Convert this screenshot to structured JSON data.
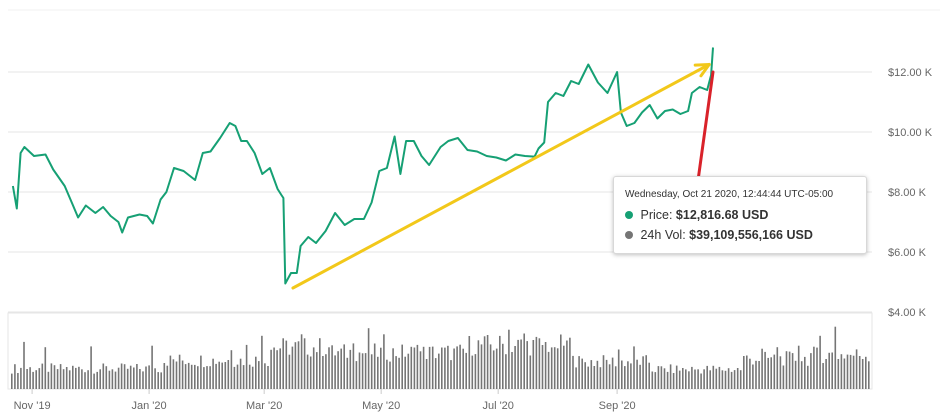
{
  "chart_data": {
    "type": "line",
    "price_axis": {
      "ticks": [
        {
          "value": 4000,
          "label": "$4.00 K"
        },
        {
          "value": 6000,
          "label": "$6.00 K"
        },
        {
          "value": 8000,
          "label": "$8.00 K"
        },
        {
          "value": 10000,
          "label": "$10.00 K"
        },
        {
          "value": 12000,
          "label": "$12.00 K"
        }
      ]
    },
    "x_axis": {
      "ticks": [
        {
          "date": "2019-11-01",
          "label": "Nov '19"
        },
        {
          "date": "2020-01-01",
          "label": "Jan '20"
        },
        {
          "date": "2020-03-01",
          "label": "Mar '20"
        },
        {
          "date": "2020-05-01",
          "label": "May '20"
        },
        {
          "date": "2020-07-01",
          "label": "Jul '20"
        },
        {
          "date": "2020-09-01",
          "label": "Sep '20"
        }
      ]
    },
    "price_series": {
      "color": "#16a074",
      "points": [
        [
          "2019-10-22",
          8200
        ],
        [
          "2019-10-24",
          7450
        ],
        [
          "2019-10-26",
          9300
        ],
        [
          "2019-10-28",
          9500
        ],
        [
          "2019-11-02",
          9200
        ],
        [
          "2019-11-08",
          9250
        ],
        [
          "2019-11-12",
          8750
        ],
        [
          "2019-11-18",
          8200
        ],
        [
          "2019-11-22",
          7600
        ],
        [
          "2019-11-25",
          7150
        ],
        [
          "2019-11-29",
          7550
        ],
        [
          "2019-12-04",
          7300
        ],
        [
          "2019-12-08",
          7500
        ],
        [
          "2019-12-12",
          7200
        ],
        [
          "2019-12-16",
          7000
        ],
        [
          "2019-12-18",
          6650
        ],
        [
          "2019-12-21",
          7150
        ],
        [
          "2019-12-27",
          7250
        ],
        [
          "2019-12-31",
          7200
        ],
        [
          "2020-01-03",
          6950
        ],
        [
          "2020-01-07",
          7750
        ],
        [
          "2020-01-10",
          8000
        ],
        [
          "2020-01-14",
          8800
        ],
        [
          "2020-01-19",
          8700
        ],
        [
          "2020-01-25",
          8400
        ],
        [
          "2020-01-29",
          9300
        ],
        [
          "2020-02-02",
          9350
        ],
        [
          "2020-02-07",
          9800
        ],
        [
          "2020-02-12",
          10300
        ],
        [
          "2020-02-15",
          10200
        ],
        [
          "2020-02-18",
          9700
        ],
        [
          "2020-02-21",
          9700
        ],
        [
          "2020-02-25",
          9300
        ],
        [
          "2020-02-29",
          8600
        ],
        [
          "2020-03-04",
          8800
        ],
        [
          "2020-03-08",
          8100
        ],
        [
          "2020-03-10",
          7900
        ],
        [
          "2020-03-11",
          7800
        ],
        [
          "2020-03-12",
          4950
        ],
        [
          "2020-03-15",
          5300
        ],
        [
          "2020-03-18",
          5300
        ],
        [
          "2020-03-20",
          6200
        ],
        [
          "2020-03-24",
          6500
        ],
        [
          "2020-03-28",
          6300
        ],
        [
          "2020-04-02",
          6700
        ],
        [
          "2020-04-07",
          7300
        ],
        [
          "2020-04-12",
          6900
        ],
        [
          "2020-04-17",
          7100
        ],
        [
          "2020-04-22",
          7100
        ],
        [
          "2020-04-26",
          7650
        ],
        [
          "2020-04-30",
          8700
        ],
        [
          "2020-05-04",
          8800
        ],
        [
          "2020-05-08",
          9850
        ],
        [
          "2020-05-11",
          8600
        ],
        [
          "2020-05-14",
          9700
        ],
        [
          "2020-05-18",
          9700
        ],
        [
          "2020-05-22",
          9200
        ],
        [
          "2020-05-26",
          8900
        ],
        [
          "2020-06-01",
          9500
        ],
        [
          "2020-06-05",
          9700
        ],
        [
          "2020-06-10",
          9800
        ],
        [
          "2020-06-15",
          9400
        ],
        [
          "2020-06-20",
          9350
        ],
        [
          "2020-06-25",
          9200
        ],
        [
          "2020-06-30",
          9150
        ],
        [
          "2020-07-05",
          9050
        ],
        [
          "2020-07-10",
          9250
        ],
        [
          "2020-07-15",
          9200
        ],
        [
          "2020-07-20",
          9180
        ],
        [
          "2020-07-22",
          9450
        ],
        [
          "2020-07-25",
          9650
        ],
        [
          "2020-07-27",
          11000
        ],
        [
          "2020-07-31",
          11300
        ],
        [
          "2020-08-04",
          11200
        ],
        [
          "2020-08-08",
          11700
        ],
        [
          "2020-08-12",
          11600
        ],
        [
          "2020-08-17",
          12250
        ],
        [
          "2020-08-22",
          11650
        ],
        [
          "2020-08-27",
          11300
        ],
        [
          "2020-09-01",
          12000
        ],
        [
          "2020-09-03",
          10650
        ],
        [
          "2020-09-06",
          10200
        ],
        [
          "2020-09-10",
          10300
        ],
        [
          "2020-09-14",
          10650
        ],
        [
          "2020-09-18",
          10900
        ],
        [
          "2020-09-22",
          10450
        ],
        [
          "2020-09-26",
          10700
        ],
        [
          "2020-09-30",
          10750
        ],
        [
          "2020-10-04",
          10600
        ],
        [
          "2020-10-08",
          10700
        ],
        [
          "2020-10-10",
          11300
        ],
        [
          "2020-10-14",
          11500
        ],
        [
          "2020-10-18",
          11400
        ],
        [
          "2020-10-20",
          11900
        ],
        [
          "2020-10-21",
          12816.68
        ]
      ]
    },
    "volume_series": {
      "color": "#757575",
      "axis_ticks": [
        {
          "value": 0,
          "label": ""
        }
      ],
      "note_scale_max": 40000000000
    },
    "annotations": [
      {
        "type": "arrow",
        "color": "#f2c81a",
        "from": [
          "2020-03-16",
          4800
        ],
        "to": [
          "2020-10-19",
          12250
        ]
      },
      {
        "type": "line",
        "color": "#d9222a",
        "from": [
          "2020-10-13",
          8300
        ],
        "to": [
          "2020-10-21",
          12000
        ]
      }
    ],
    "tooltip": {
      "header": "Wednesday, Oct 21 2020, 12:44:44 UTC-05:00",
      "price_label": "Price:",
      "price_value": "$12,816.68 USD",
      "price_dot_color": "#16a074",
      "volume_label": "24h Vol:",
      "volume_value": "$39,109,556,166 USD",
      "volume_dot_color": "#757575"
    }
  }
}
